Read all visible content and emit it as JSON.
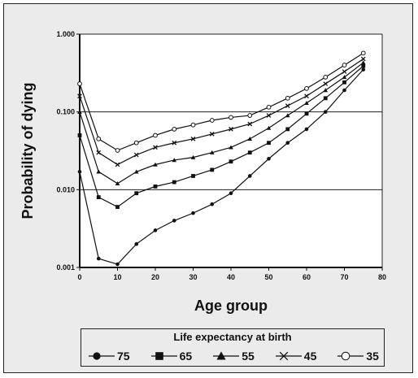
{
  "chart_data": {
    "type": "line",
    "title": "",
    "xlabel": "Age group",
    "ylabel": "Probability of dying",
    "xlim": [
      0,
      80
    ],
    "ylim": [
      0.001,
      1.0
    ],
    "y_scale": "log",
    "x_ticks": [
      "0",
      "10",
      "20",
      "30",
      "40",
      "50",
      "60",
      "70",
      "80"
    ],
    "y_ticks": [
      "0.001",
      "0.010",
      "0.100",
      "1.000"
    ],
    "gridlines_y": [
      0.01,
      0.1
    ],
    "x": [
      0,
      5,
      10,
      15,
      20,
      25,
      30,
      35,
      40,
      45,
      50,
      55,
      60,
      65,
      70,
      75
    ],
    "legend_title": "Life expectancy at birth",
    "legend_position": "bottom",
    "series": [
      {
        "name": "75",
        "marker": "filled-circle",
        "values": [
          0.017,
          0.0013,
          0.0011,
          0.002,
          0.003,
          0.004,
          0.005,
          0.0065,
          0.009,
          0.015,
          0.025,
          0.04,
          0.06,
          0.1,
          0.19,
          0.35
        ]
      },
      {
        "name": "65",
        "marker": "filled-square",
        "values": [
          0.05,
          0.008,
          0.006,
          0.009,
          0.011,
          0.0125,
          0.015,
          0.018,
          0.023,
          0.03,
          0.04,
          0.06,
          0.095,
          0.15,
          0.24,
          0.39
        ]
      },
      {
        "name": "55",
        "marker": "filled-triangle",
        "values": [
          0.1,
          0.017,
          0.012,
          0.017,
          0.021,
          0.024,
          0.026,
          0.03,
          0.035,
          0.045,
          0.062,
          0.09,
          0.13,
          0.19,
          0.28,
          0.43
        ]
      },
      {
        "name": "45",
        "marker": "x-cross",
        "values": [
          0.16,
          0.03,
          0.021,
          0.028,
          0.035,
          0.04,
          0.045,
          0.052,
          0.06,
          0.07,
          0.09,
          0.12,
          0.16,
          0.23,
          0.33,
          0.48
        ]
      },
      {
        "name": "35",
        "marker": "open-circle",
        "values": [
          0.23,
          0.045,
          0.032,
          0.04,
          0.05,
          0.06,
          0.068,
          0.078,
          0.085,
          0.09,
          0.115,
          0.15,
          0.2,
          0.28,
          0.4,
          0.57
        ]
      }
    ]
  }
}
